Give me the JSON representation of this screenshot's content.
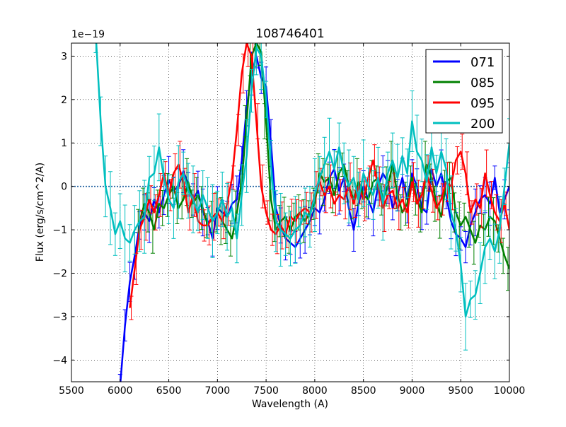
{
  "chart_data": {
    "type": "line",
    "title": "108746401",
    "xlabel": "Wavelength (A)",
    "ylabel": "Flux (erg/s/cm^2/A)",
    "offset_label": "1e−19",
    "xlim": [
      5500,
      10000
    ],
    "ylim": [
      -4.5,
      3.3
    ],
    "xticks": [
      5500,
      6000,
      6500,
      7000,
      7500,
      8000,
      8500,
      9000,
      9500,
      10000
    ],
    "xtick_labels": [
      "5500",
      "6000",
      "6500",
      "7000",
      "7500",
      "8000",
      "8500",
      "9000",
      "9500",
      "10000"
    ],
    "yticks": [
      -4,
      -3,
      -2,
      -1,
      0,
      1,
      2,
      3
    ],
    "ytick_labels": [
      "−4",
      "−3",
      "−2",
      "−1",
      "0",
      "1",
      "2",
      "3"
    ],
    "grid": true,
    "legend_position": "top-right",
    "zero_line": {
      "y": 0,
      "color": "#1f5f9f",
      "style": "dotted"
    },
    "series": [
      {
        "name": "071",
        "color": "#0000ff",
        "x": [
          6000,
          6050,
          6100,
          6150,
          6200,
          6250,
          6300,
          6350,
          6400,
          6450,
          6500,
          6550,
          6600,
          6650,
          6700,
          6750,
          6800,
          6850,
          6900,
          6950,
          7000,
          7050,
          7100,
          7150,
          7200,
          7250,
          7300,
          7350,
          7400,
          7450,
          7500,
          7550,
          7600,
          7650,
          7700,
          7750,
          7800,
          7850,
          7900,
          7950,
          8000,
          8050,
          8100,
          8150,
          8200,
          8250,
          8300,
          8350,
          8400,
          8450,
          8500,
          8550,
          8600,
          8650,
          8700,
          8750,
          8800,
          8850,
          8900,
          8950,
          9000,
          9050,
          9100,
          9150,
          9200,
          9250,
          9300,
          9350,
          9400,
          9450,
          9500,
          9550,
          9600,
          9650,
          9700,
          9750,
          9800,
          9850,
          9900,
          9950,
          10000
        ],
        "y": [
          -4.6,
          -3.2,
          -2.2,
          -1.6,
          -0.9,
          -0.6,
          -0.8,
          -0.3,
          -0.6,
          -0.2,
          0.15,
          -0.1,
          0.0,
          0.35,
          0.05,
          -0.3,
          -0.1,
          -0.6,
          -0.8,
          -1.2,
          -0.5,
          -0.6,
          -0.7,
          -0.4,
          -0.3,
          0.6,
          1.8,
          2.6,
          3.0,
          2.5,
          2.3,
          1.0,
          -0.5,
          -0.9,
          -1.2,
          -1.3,
          -1.4,
          -1.2,
          -1.0,
          -0.8,
          -0.5,
          -0.6,
          -0.3,
          0.2,
          0.4,
          -0.1,
          0.2,
          -0.5,
          -1.0,
          -0.4,
          0.0,
          -0.3,
          -0.6,
          0.0,
          0.3,
          0.1,
          -0.5,
          -0.2,
          0.2,
          -0.3,
          0.3,
          0.0,
          -0.5,
          -0.6,
          0.4,
          0.0,
          0.3,
          -0.2,
          -0.8,
          -1.1,
          -1.2,
          -1.4,
          -0.9,
          -0.6,
          -0.3,
          -0.2,
          -0.4,
          0.2,
          -0.6,
          -0.3,
          0.0
        ],
        "error": 0.45
      },
      {
        "name": "085",
        "color": "#008000",
        "x": [
          6200,
          6250,
          6300,
          6350,
          6400,
          6450,
          6500,
          6550,
          6600,
          6650,
          6700,
          6750,
          6800,
          6850,
          6900,
          6950,
          7000,
          7050,
          7100,
          7150,
          7200,
          7250,
          7300,
          7350,
          7400,
          7450,
          7500,
          7550,
          7600,
          7650,
          7700,
          7750,
          7800,
          7850,
          7900,
          7950,
          8000,
          8050,
          8100,
          8150,
          8200,
          8250,
          8300,
          8350,
          8400,
          8450,
          8500,
          8550,
          8600,
          8650,
          8700,
          8750,
          8800,
          8850,
          8900,
          8950,
          9000,
          9050,
          9100,
          9150,
          9200,
          9250,
          9300,
          9350,
          9400,
          9450,
          9500,
          9550,
          9600,
          9650,
          9700,
          9750,
          9800,
          9850,
          9900,
          9950,
          10000
        ],
        "y": [
          -0.8,
          -0.4,
          -0.6,
          -1.0,
          -0.4,
          -0.5,
          -0.2,
          0.0,
          -0.5,
          -0.3,
          0.1,
          -0.4,
          -0.2,
          -0.5,
          -0.9,
          -0.7,
          -0.6,
          -0.8,
          -1.0,
          -1.2,
          -0.6,
          0.1,
          1.5,
          3.0,
          3.3,
          3.1,
          1.5,
          -0.3,
          -1.0,
          -0.8,
          -0.7,
          -1.0,
          -0.7,
          -0.6,
          -0.8,
          -0.6,
          -0.4,
          0.3,
          0.1,
          0.2,
          -0.2,
          0.3,
          0.5,
          0.0,
          -0.3,
          0.1,
          -0.2,
          -0.3,
          0.1,
          0.2,
          -0.3,
          0.0,
          0.5,
          -0.2,
          -0.6,
          -0.4,
          0.2,
          -0.3,
          -0.6,
          0.5,
          0.2,
          -0.4,
          -0.7,
          0.1,
          0.2,
          -0.6,
          -0.9,
          -0.7,
          -1.0,
          -1.3,
          -0.9,
          -1.0,
          -0.7,
          -0.8,
          -1.2,
          -1.6,
          -1.9
        ],
        "error": 0.45
      },
      {
        "name": "095",
        "color": "#ff0000",
        "x": [
          6100,
          6150,
          6200,
          6250,
          6300,
          6350,
          6400,
          6450,
          6500,
          6550,
          6600,
          6650,
          6700,
          6750,
          6800,
          6850,
          6900,
          6950,
          7000,
          7050,
          7100,
          7150,
          7200,
          7250,
          7300,
          7350,
          7400,
          7450,
          7500,
          7550,
          7600,
          7650,
          7700,
          7750,
          7800,
          7850,
          7900,
          7950,
          8000,
          8050,
          8100,
          8150,
          8200,
          8250,
          8300,
          8350,
          8400,
          8450,
          8500,
          8550,
          8600,
          8650,
          8700,
          8750,
          8800,
          8850,
          8900,
          8950,
          9000,
          9050,
          9100,
          9150,
          9200,
          9250,
          9300,
          9350,
          9400,
          9450,
          9500,
          9550,
          9600,
          9650,
          9700,
          9750,
          9800,
          9850,
          9900,
          9950,
          10000
        ],
        "y": [
          -2.8,
          -1.9,
          -1.0,
          -0.7,
          -0.3,
          -0.6,
          -0.2,
          0.3,
          -0.2,
          0.3,
          0.5,
          0.1,
          -0.6,
          -0.2,
          -0.8,
          -0.9,
          -0.9,
          -0.7,
          -0.6,
          -0.8,
          -0.4,
          0.2,
          1.3,
          2.6,
          3.3,
          3.0,
          1.5,
          0.0,
          -0.6,
          -1.0,
          -1.1,
          -0.9,
          -1.1,
          -0.7,
          -0.8,
          -0.6,
          -0.5,
          -0.6,
          -0.2,
          0.1,
          -0.2,
          0.0,
          -0.4,
          -0.2,
          -0.3,
          0.0,
          -0.4,
          0.0,
          -0.3,
          0.2,
          0.6,
          0.0,
          -0.5,
          -0.2,
          -0.1,
          -0.5,
          -0.3,
          -0.6,
          0.1,
          -0.4,
          -0.2,
          0.3,
          -0.1,
          -0.5,
          -0.3,
          0.1,
          0.0,
          0.6,
          0.8,
          0.3,
          -0.6,
          -0.3,
          -0.5,
          0.3,
          -0.2,
          -0.6,
          -0.8,
          -0.4,
          -1.0
        ],
        "error": 0.45
      },
      {
        "name": "200",
        "color": "#00bfbf",
        "x": [
          5750,
          5800,
          5850,
          5900,
          5950,
          6000,
          6050,
          6100,
          6150,
          6200,
          6250,
          6300,
          6350,
          6400,
          6450,
          6500,
          6550,
          6600,
          6650,
          6700,
          6750,
          6800,
          6850,
          6900,
          6950,
          7000,
          7050,
          7100,
          7150,
          7200,
          7250,
          7300,
          7350,
          7400,
          7450,
          7500,
          7550,
          7600,
          7650,
          7700,
          7750,
          7800,
          7850,
          7900,
          7950,
          8000,
          8050,
          8100,
          8150,
          8200,
          8250,
          8300,
          8350,
          8400,
          8450,
          8500,
          8550,
          8600,
          8650,
          8700,
          8750,
          8800,
          8850,
          8900,
          8950,
          9000,
          9050,
          9100,
          9150,
          9200,
          9250,
          9300,
          9350,
          9400,
          9450,
          9500,
          9550,
          9600,
          9650,
          9700,
          9750,
          9800,
          9850,
          9900,
          9950,
          10000
        ],
        "y": [
          3.5,
          1.5,
          0.0,
          -0.5,
          -1.1,
          -0.8,
          -1.2,
          -1.3,
          -1.0,
          -0.8,
          -0.7,
          0.2,
          0.3,
          0.9,
          0.2,
          -0.3,
          -0.5,
          0.1,
          0.3,
          -0.1,
          -0.3,
          -0.6,
          -0.2,
          -0.5,
          -0.8,
          -0.6,
          -0.3,
          -0.7,
          -0.5,
          -1.2,
          -0.2,
          0.7,
          2.2,
          3.2,
          3.0,
          2.0,
          0.5,
          -0.8,
          -1.0,
          -1.1,
          -1.2,
          -1.0,
          -0.9,
          -0.6,
          -0.7,
          -0.2,
          0.2,
          0.5,
          0.8,
          0.4,
          0.9,
          0.3,
          0.0,
          0.2,
          -0.3,
          0.3,
          0.0,
          -0.2,
          0.2,
          -0.4,
          0.3,
          0.6,
          0.2,
          0.7,
          0.3,
          1.5,
          0.8,
          0.6,
          0.1,
          0.9,
          0.3,
          0.8,
          0.4,
          -0.6,
          -1.0,
          -1.8,
          -3.0,
          -2.6,
          -2.5,
          -2.0,
          -1.4,
          -1.2,
          -1.5,
          -1.0,
          0.0,
          1.0
        ],
        "error": 0.7
      }
    ]
  }
}
